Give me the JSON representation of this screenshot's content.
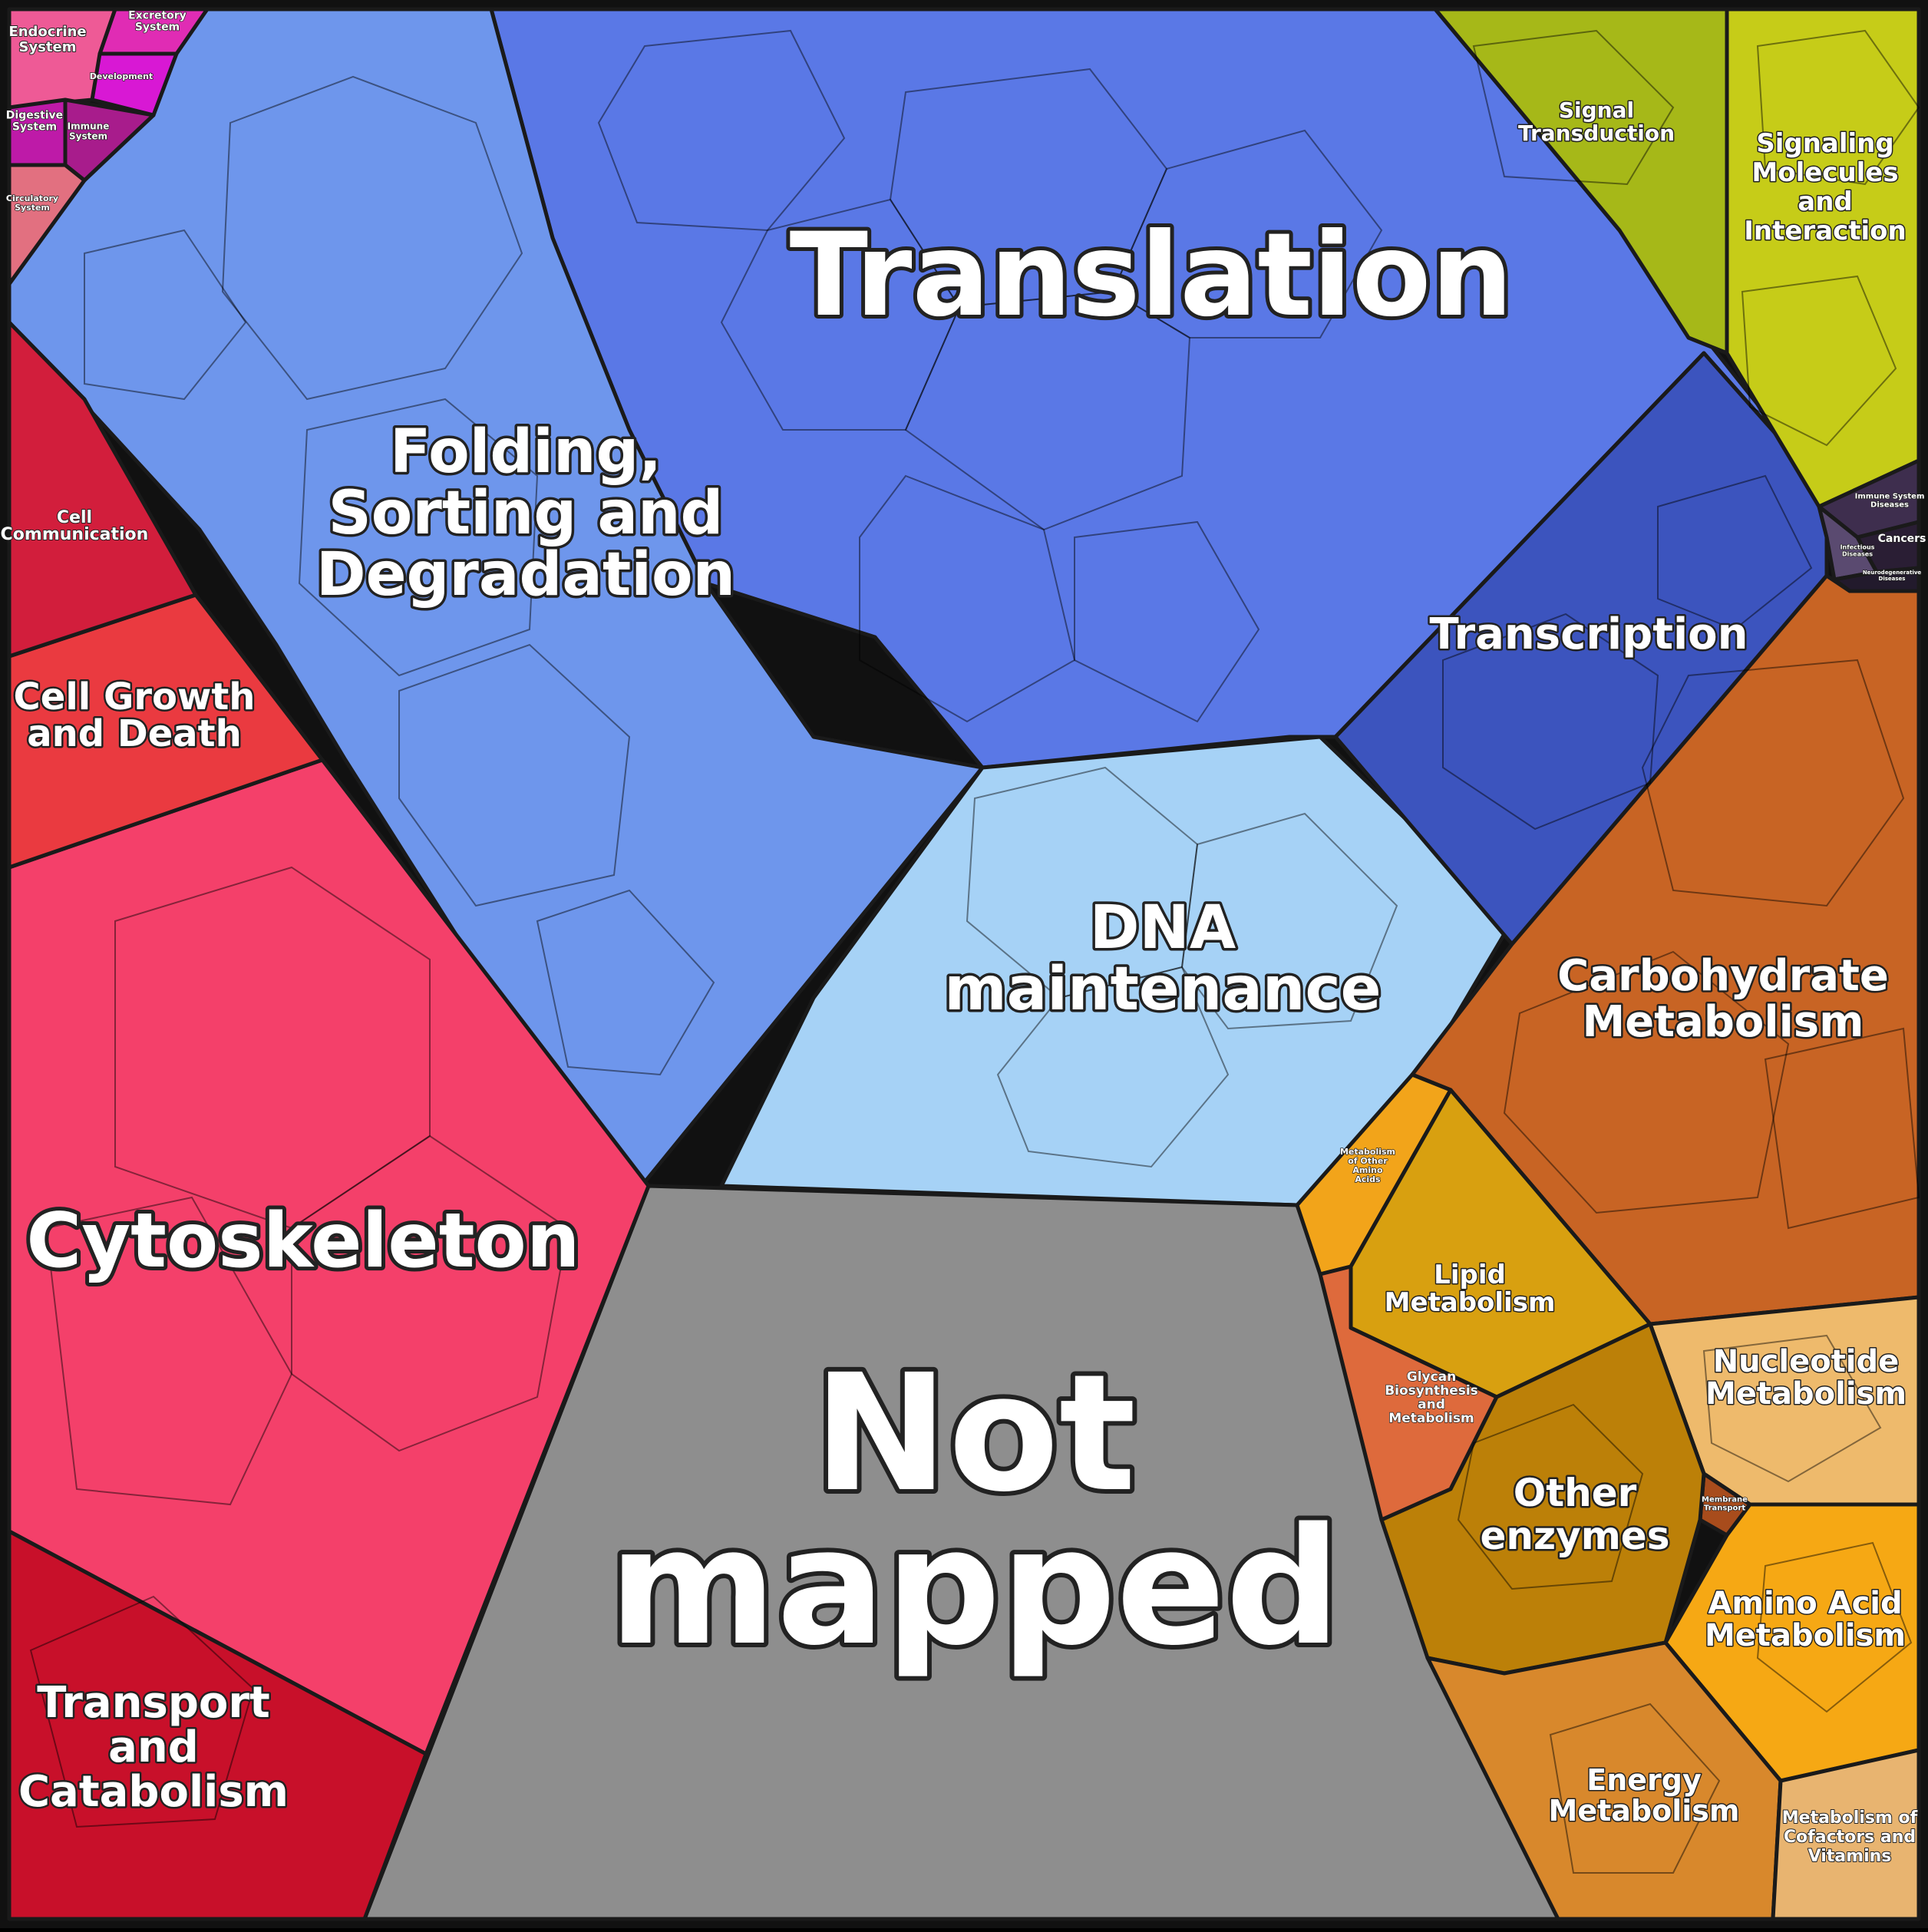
{
  "regions": {
    "translation": {
      "label": [
        "Translation"
      ],
      "color": "#5a78e6"
    },
    "folding": {
      "label": [
        "Folding,",
        "Sorting and",
        "Degradation"
      ],
      "color": "#6e96ec"
    },
    "dna": {
      "label": [
        "DNA",
        "maintenance"
      ],
      "color": "#a6d2f6"
    },
    "transcription": {
      "label": [
        "Transcription"
      ],
      "color": "#3c54be"
    },
    "not_mapped": {
      "label": [
        "Not",
        "mapped"
      ],
      "color": "#8e8e8e"
    },
    "cytoskeleton": {
      "label": [
        "Cytoskeleton"
      ],
      "color": "#f4406a"
    },
    "cell_growth": {
      "label": [
        "Cell Growth",
        "and Death"
      ],
      "color": "#ea3a40"
    },
    "cell_comm": {
      "label": [
        "Cell",
        "Communication"
      ],
      "color": "#d21e3c"
    },
    "transport": {
      "label": [
        "Transport",
        "and",
        "Catabolism"
      ],
      "color": "#c8102a"
    },
    "endocrine": {
      "label": [
        "Endocrine",
        "System"
      ],
      "color": "#ee5a96"
    },
    "excretory": {
      "label": [
        "Excretory",
        "System"
      ],
      "color": "#e02cb4"
    },
    "development": {
      "label": [
        "Development"
      ],
      "color": "#d818d4"
    },
    "digestive": {
      "label": [
        "Digestive",
        "System"
      ],
      "color": "#be1aa8"
    },
    "immune": {
      "label": [
        "Immune",
        "System"
      ],
      "color": "#a81c8c"
    },
    "circulatory": {
      "label": [
        "Circulatory",
        "System"
      ],
      "color": "#e27080"
    },
    "signal_transduction": {
      "label": [
        "Signal",
        "Transduction"
      ],
      "color": "#a6b818"
    },
    "signaling_molecules": {
      "label": [
        "Signaling",
        "Molecules",
        "and",
        "Interaction"
      ],
      "color": "#c6cc18"
    },
    "immune_diseases": {
      "label": [
        "Immune System",
        "Diseases"
      ],
      "color": "#3e2e4e"
    },
    "cancers": {
      "label": [
        "Cancers"
      ],
      "color": "#2a1e34"
    },
    "infectious": {
      "label": [
        "Infectious",
        "Diseases"
      ],
      "color": "#5a4a70"
    },
    "neuro": {
      "label": [
        "Neurodegenerative",
        "Diseases"
      ],
      "color": "#221a2c"
    },
    "carbohydrate": {
      "label": [
        "Carbohydrate",
        "Metabolism"
      ],
      "color": "#c86424"
    },
    "other_amino": {
      "label": [
        "Metabolism",
        "of Other",
        "Amino",
        "Acids"
      ],
      "color": "#f2a41a"
    },
    "lipid": {
      "label": [
        "Lipid",
        "Metabolism"
      ],
      "color": "#d8a010"
    },
    "glycan": {
      "label": [
        "Glycan",
        "Biosynthesis",
        "and",
        "Metabolism"
      ],
      "color": "#de6a3c"
    },
    "nucleotide": {
      "label": [
        "Nucleotide",
        "Metabolism"
      ],
      "color": "#eeba6c"
    },
    "membrane": {
      "label": [
        "Membrane",
        "Transport"
      ],
      "color": "#a84c1c"
    },
    "other_enzymes": {
      "label": [
        "Other",
        "enzymes"
      ],
      "color": "#bc8008"
    },
    "amino_acid": {
      "label": [
        "Amino Acid",
        "Metabolism"
      ],
      "color": "#f6a814"
    },
    "energy": {
      "label": [
        "Energy",
        "Metabolism"
      ],
      "color": "#d8882c"
    },
    "cofactors": {
      "label": [
        "Metabolism of",
        "Cofactors and",
        "Vitamins"
      ],
      "color": "#e8b470"
    }
  }
}
